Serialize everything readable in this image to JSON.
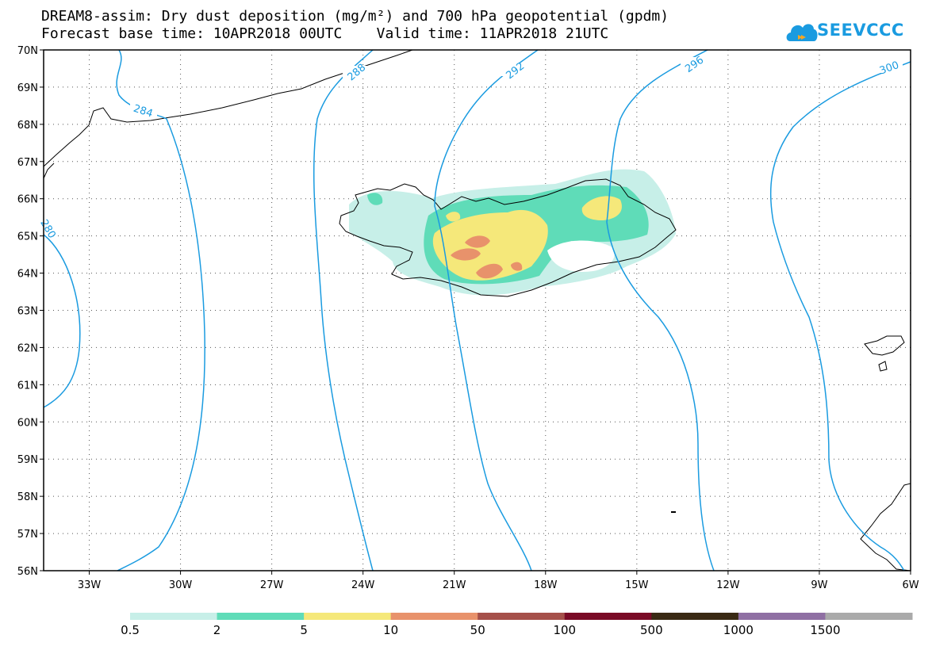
{
  "title_line1": "DREAM8-assim: Dry dust deposition (mg/m²) and 700 hPa geopotential (gpdm)",
  "title_line2": "Forecast base time: 10APR2018 00UTC    Valid time: 11APR2018 21UTC",
  "logo_text": "SEEVCCC",
  "latitude_labels": [
    "70N",
    "69N",
    "68N",
    "67N",
    "66N",
    "65N",
    "64N",
    "63N",
    "62N",
    "61N",
    "60N",
    "59N",
    "58N",
    "57N",
    "56N"
  ],
  "longitude_labels": [
    "33W",
    "30W",
    "27W",
    "24W",
    "21W",
    "18W",
    "15W",
    "12W",
    "9W",
    "6W"
  ],
  "geopotential_contour_labels": [
    "284",
    "288",
    "292",
    "296",
    "300",
    "280"
  ],
  "colorbar": {
    "labels": [
      "0.5",
      "2",
      "5",
      "10",
      "50",
      "100",
      "500",
      "1000",
      "1500"
    ],
    "colors": [
      "#c7efe8",
      "#5fdcb8",
      "#f5e87a",
      "#e8926b",
      "#a5504a",
      "#7a0a26",
      "#3a2a14",
      "#8f6fa3",
      "#aaaaaa"
    ]
  },
  "contour_color": "#1a9be0"
}
